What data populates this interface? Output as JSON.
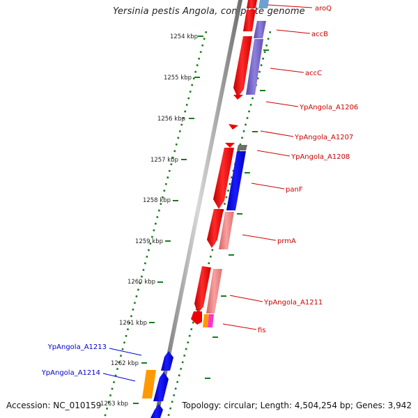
{
  "map": {
    "title": "Yersinia pestis Angola, complete genome",
    "accession": "Accession: NC_010159",
    "summary": "Topology: circular; Length: 4,504,254 bp; Genes: 3,942"
  },
  "ticks": [
    {
      "label": "1254 kbp"
    },
    {
      "label": "1255 kbp"
    },
    {
      "label": "1256 kbp"
    },
    {
      "label": "1257 kbp"
    },
    {
      "label": "1258 kbp"
    },
    {
      "label": "1259 kbp"
    },
    {
      "label": "1260 kbp"
    },
    {
      "label": "1261 kbp"
    },
    {
      "label": "1262 kbp"
    },
    {
      "label": "1263 kbp"
    }
  ],
  "gene_labels": [
    {
      "name": "aroQ",
      "color": "#cc0000"
    },
    {
      "name": "accB",
      "color": "#cc0000"
    },
    {
      "name": "accC",
      "color": "#cc0000"
    },
    {
      "name": "YpAngola_A1206",
      "color": "#cc0000"
    },
    {
      "name": "YpAngola_A1207",
      "color": "#cc0000"
    },
    {
      "name": "YpAngola_A1208",
      "color": "#cc0000"
    },
    {
      "name": "panF",
      "color": "#cc0000"
    },
    {
      "name": "prmA",
      "color": "#cc0000"
    },
    {
      "name": "YpAngola_A1211",
      "color": "#cc0000"
    },
    {
      "name": "fis",
      "color": "#cc0000"
    },
    {
      "name": "YpAngola_A1213",
      "color": "#0000cc"
    },
    {
      "name": "YpAngola_A1214",
      "color": "#0000cc"
    }
  ],
  "colors": {
    "forward_gene": "#ff0000",
    "reverse_gene": "#0000ff",
    "cog_purple": "#7b68cc",
    "cog_salmon": "#f08080",
    "cog_orange": "#ff9900",
    "cog_magenta": "#ff33cc",
    "tick_green": "#1a7a1a",
    "backbone": "#808080"
  }
}
